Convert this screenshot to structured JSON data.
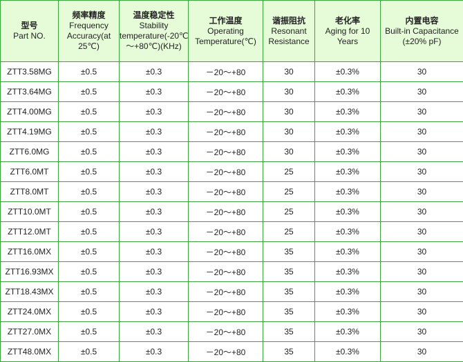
{
  "headers": [
    {
      "zh": "型号",
      "en": "Part NO."
    },
    {
      "zh": "频率精度",
      "en": "Frequency Accuracy(at 25℃)"
    },
    {
      "zh": "温度稳定性",
      "en": "Stability temperature(-20℃～+80℃)(KHz)"
    },
    {
      "zh": "工作温度",
      "en": "Operating Temperature(℃)"
    },
    {
      "zh": "谐振阻抗",
      "en": "Resonant Resistance"
    },
    {
      "zh": "老化率",
      "en": "Aging for 10 Years"
    },
    {
      "zh": "内置电容",
      "en": "Built-in Capacitance (±20% pF)"
    }
  ],
  "rows": [
    [
      "ZTT3.58MG",
      "±0.5",
      "±0.3",
      "－20～+80",
      "30",
      "±0.3%",
      "30"
    ],
    [
      "ZTT3.64MG",
      "±0.5",
      "±0.3",
      "－20～+80",
      "30",
      "±0.3%",
      "30"
    ],
    [
      "ZTT4.00MG",
      "±0.5",
      "±0.3",
      "－20～+80",
      "30",
      "±0.3%",
      "30"
    ],
    [
      "ZTT4.19MG",
      "±0.5",
      "±0.3",
      "－20～+80",
      "30",
      "±0.3%",
      "30"
    ],
    [
      "ZTT6.0MG",
      "±0.5",
      "±0.3",
      "－20～+80",
      "30",
      "±0.3%",
      "30"
    ],
    [
      "ZTT6.0MT",
      "±0.5",
      "±0.3",
      "－20～+80",
      "25",
      "±0.3%",
      "30"
    ],
    [
      "ZTT8.0MT",
      "±0.5",
      "±0.3",
      "－20～+80",
      "25",
      "±0.3%",
      "30"
    ],
    [
      "ZTT10.0MT",
      "±0.5",
      "±0.3",
      "－20～+80",
      "25",
      "±0.3%",
      "30"
    ],
    [
      "ZTT12.0MT",
      "±0.5",
      "±0.3",
      "－20～+80",
      "25",
      "±0.3%",
      "30"
    ],
    [
      "ZTT16.0MX",
      "±0.5",
      "±0.3",
      "－20～+80",
      "35",
      "±0.3%",
      "30"
    ],
    [
      "ZTT16.93MX",
      "±0.5",
      "±0.3",
      "－20～+80",
      "35",
      "±0.3%",
      "30"
    ],
    [
      "ZTT18.43MX",
      "±0.5",
      "±0.3",
      "－20～+80",
      "35",
      "±0.3%",
      "30"
    ],
    [
      "ZTT24.0MX",
      "±0.5",
      "±0.3",
      "－20～+80",
      "35",
      "±0.3%",
      "30"
    ],
    [
      "ZTT27.0MX",
      "±0.5",
      "±0.3",
      "－20～+80",
      "35",
      "±0.3%",
      "30"
    ],
    [
      "ZTT48.0MX",
      "±0.5",
      "±0.3",
      "－20～+80",
      "35",
      "±0.3%",
      "30"
    ]
  ]
}
